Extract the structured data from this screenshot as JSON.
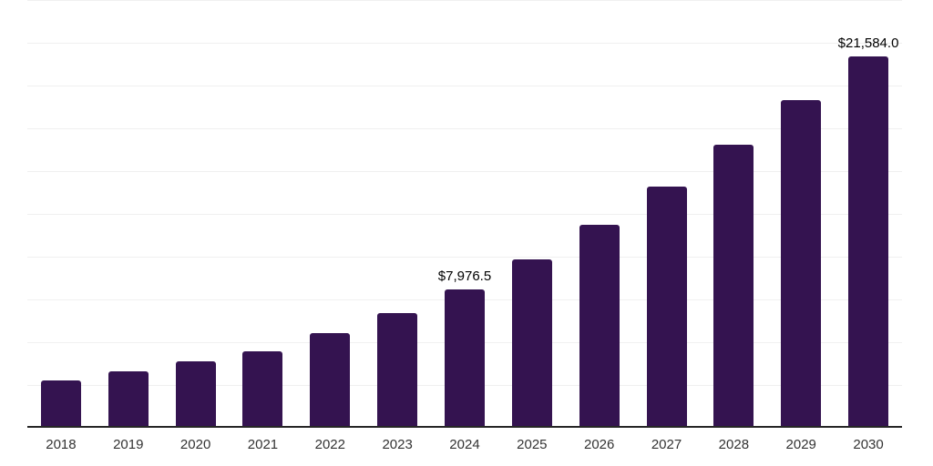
{
  "chart_data": {
    "type": "bar",
    "title": "",
    "xlabel": "",
    "ylabel": "",
    "categories": [
      "2018",
      "2019",
      "2020",
      "2021",
      "2022",
      "2023",
      "2024",
      "2025",
      "2026",
      "2027",
      "2028",
      "2029",
      "2030"
    ],
    "values": [
      2640,
      3210,
      3750,
      4360,
      5430,
      6620,
      7976.5,
      9730,
      11760,
      13990,
      16460,
      19040,
      21584
    ],
    "annotations": [
      {
        "category": "2024",
        "label": "$7,976.5"
      },
      {
        "category": "2030",
        "label": "$21,584.0"
      }
    ],
    "ylim": [
      0,
      25000
    ],
    "gridline_step": 2500,
    "grid": true,
    "legend": false,
    "y_tick_labels_visible": false,
    "bar_color": "#341350",
    "gridline_color": "#f0f0f0",
    "axis_color": "#262626",
    "xlabel_color": "#333333",
    "annotation_color": "#000000"
  }
}
